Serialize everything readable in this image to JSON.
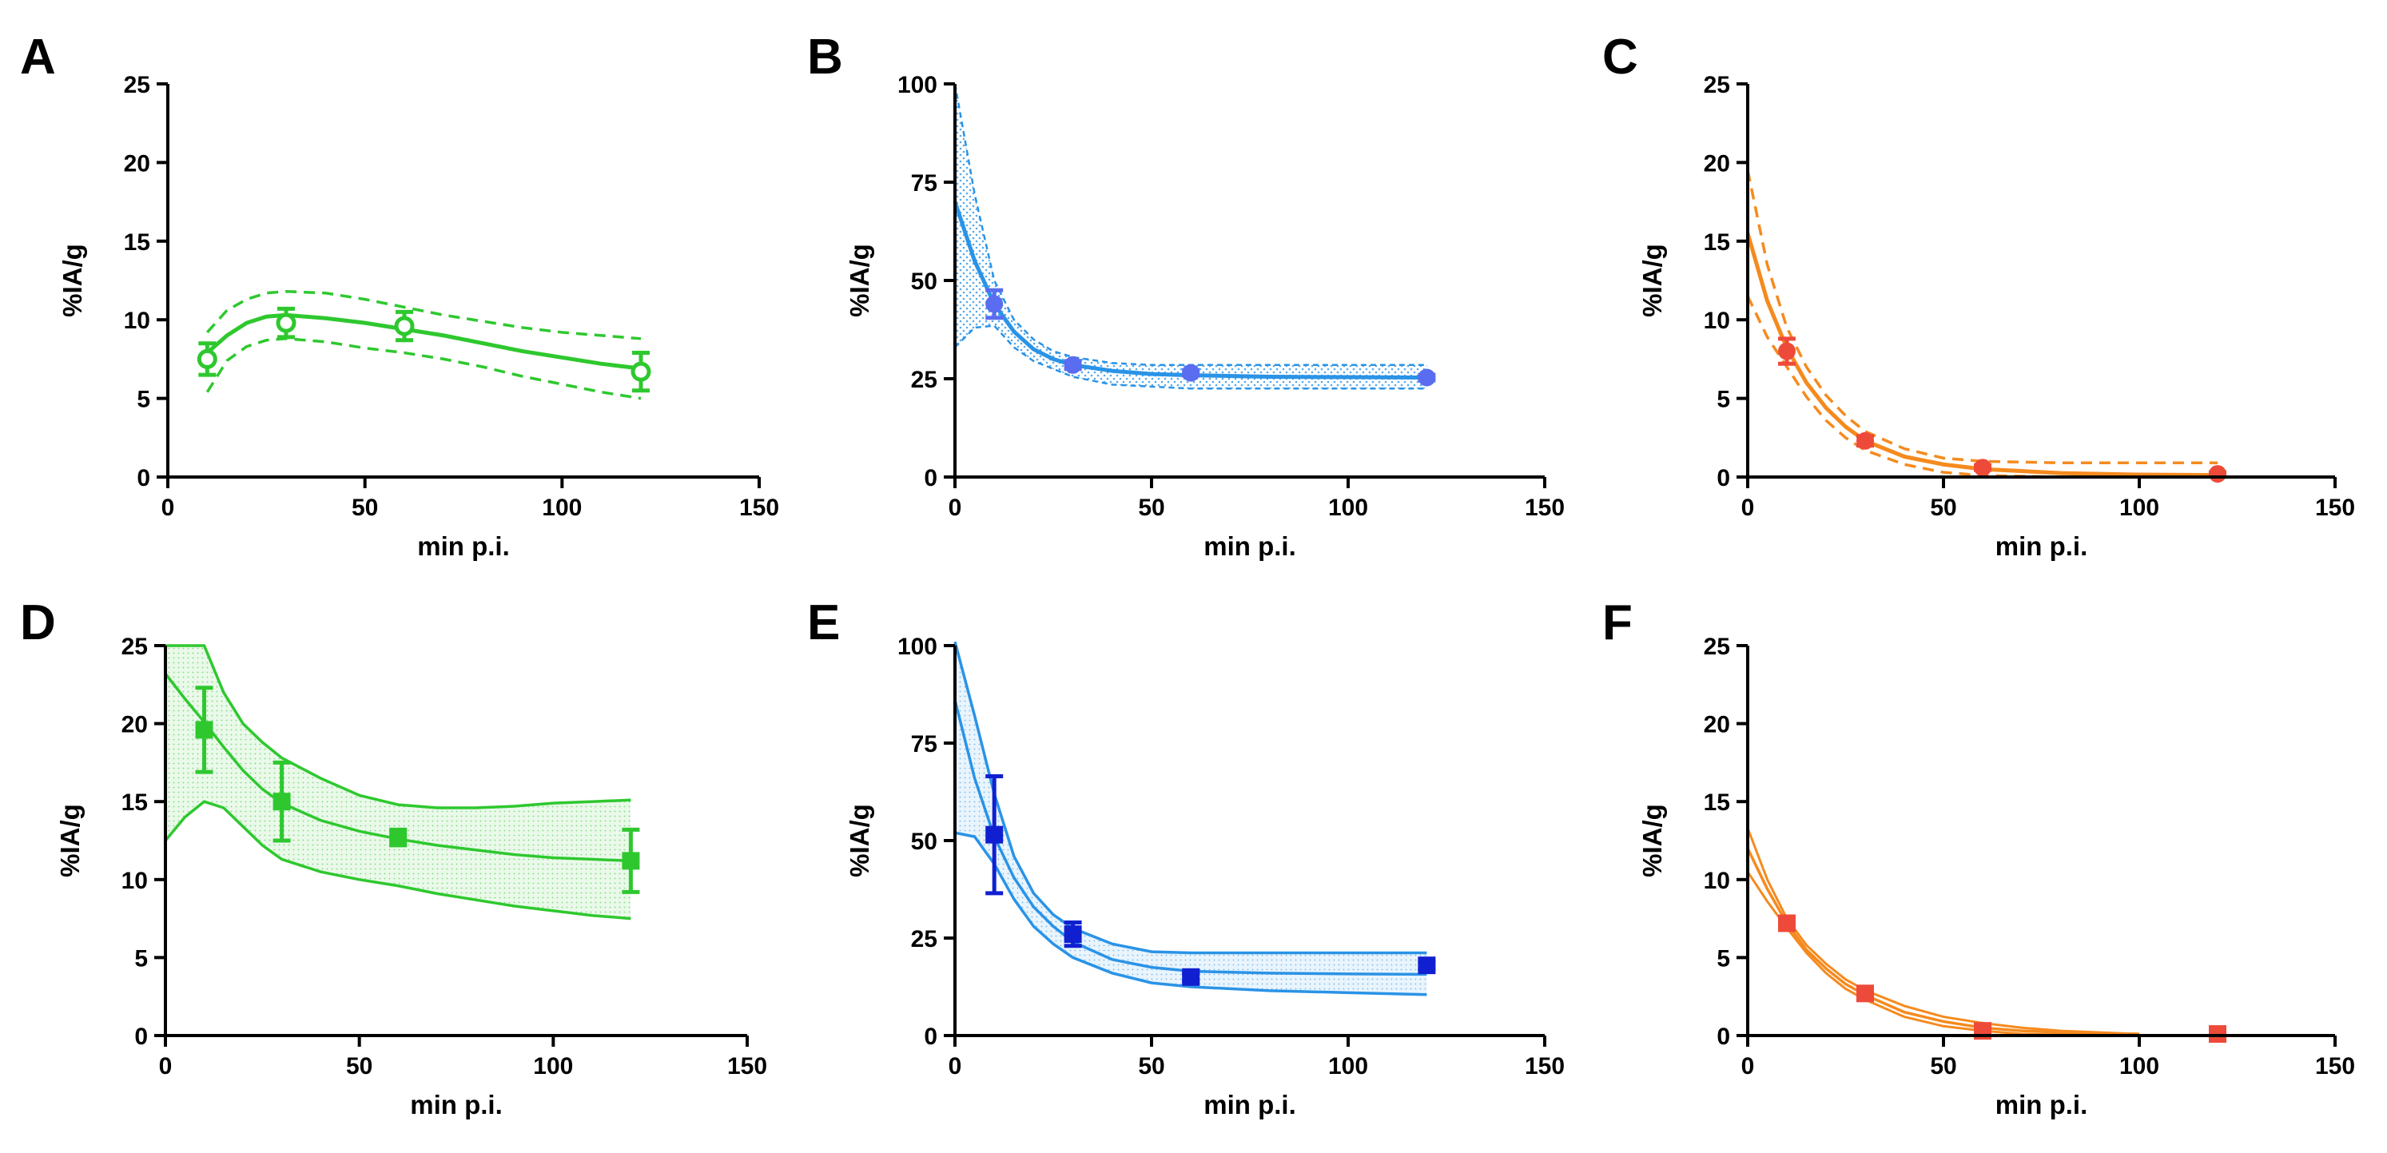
{
  "figure": {
    "description_labels": [
      "A",
      "B",
      "C",
      "D",
      "E",
      "F"
    ]
  },
  "colors": {
    "green": "#2ec82e",
    "blue": "#2a93e6",
    "blue_marker": "#5a6cf0",
    "blue_dark": "#1020d0",
    "orange": "#f58a1e",
    "red_marker": "#ee4a3a"
  },
  "chart_data": [
    {
      "panel": "A",
      "type": "scatter",
      "xlabel": "min p.i.",
      "ylabel": "%IA/g",
      "xlim": [
        0,
        150
      ],
      "ylim": [
        0,
        25
      ],
      "xticks": [
        "0",
        "50",
        "100",
        "150"
      ],
      "yticks": [
        "0",
        "5",
        "10",
        "15",
        "20",
        "25"
      ],
      "marker": "circle-open",
      "color_key": "green",
      "band_style": "dashed",
      "points": [
        {
          "x": 10,
          "y": 7.5,
          "err": 1.0
        },
        {
          "x": 30,
          "y": 9.8,
          "err": 0.9
        },
        {
          "x": 60,
          "y": 9.6,
          "err": 0.9
        },
        {
          "x": 120,
          "y": 6.7,
          "err": 1.2
        }
      ],
      "fit": {
        "x": [
          10,
          15,
          20,
          25,
          30,
          40,
          50,
          60,
          70,
          80,
          90,
          100,
          110,
          120
        ],
        "y": [
          7.9,
          9.0,
          9.8,
          10.2,
          10.3,
          10.1,
          9.8,
          9.4,
          9.0,
          8.5,
          8.0,
          7.6,
          7.2,
          6.9
        ]
      },
      "band_upper": {
        "x": [
          10,
          15,
          20,
          25,
          30,
          40,
          50,
          60,
          70,
          80,
          90,
          100,
          110,
          120
        ],
        "y": [
          9.2,
          10.6,
          11.3,
          11.7,
          11.8,
          11.7,
          11.3,
          10.8,
          10.3,
          9.9,
          9.5,
          9.2,
          9.0,
          8.8
        ]
      },
      "band_lower": {
        "x": [
          10,
          15,
          20,
          25,
          30,
          40,
          50,
          60,
          70,
          80,
          90,
          100,
          110,
          120
        ],
        "y": [
          5.4,
          7.4,
          8.3,
          8.7,
          8.8,
          8.6,
          8.2,
          7.9,
          7.5,
          7.0,
          6.4,
          5.9,
          5.4,
          5.0
        ]
      }
    },
    {
      "panel": "B",
      "type": "scatter",
      "xlabel": "min p.i.",
      "ylabel": "%IA/g",
      "xlim": [
        0,
        150
      ],
      "ylim": [
        0,
        100
      ],
      "xticks": [
        "0",
        "50",
        "100",
        "150"
      ],
      "yticks": [
        "0",
        "25",
        "50",
        "75",
        "100"
      ],
      "marker": "circle",
      "color_key": "blue",
      "marker_color_key": "blue_marker",
      "band_style": "dotted-fill",
      "points": [
        {
          "x": 10,
          "y": 44,
          "err": 3.5
        },
        {
          "x": 30,
          "y": 28.5,
          "err": 1.0
        },
        {
          "x": 60,
          "y": 26.5,
          "err": 0.7
        },
        {
          "x": 120,
          "y": 25.3,
          "err": 0.7
        }
      ],
      "fit": {
        "x": [
          0,
          5,
          10,
          15,
          20,
          25,
          30,
          40,
          50,
          60,
          80,
          100,
          120
        ],
        "y": [
          70,
          55,
          44,
          37,
          32.5,
          30,
          28.5,
          27,
          26.2,
          25.9,
          25.5,
          25.4,
          25.3
        ]
      },
      "band_upper": {
        "x": [
          0,
          5,
          10,
          15,
          20,
          25,
          30,
          40,
          50,
          60,
          80,
          100,
          120
        ],
        "y": [
          100,
          72,
          50,
          40,
          35,
          32,
          30.5,
          29,
          28.5,
          28.5,
          28.5,
          28.5,
          28.5
        ]
      },
      "band_lower": {
        "x": [
          0,
          5,
          10,
          15,
          20,
          25,
          30,
          40,
          50,
          60,
          80,
          100,
          120
        ],
        "y": [
          33,
          38,
          38.5,
          33,
          29.5,
          27.5,
          25.5,
          23.5,
          23,
          22.5,
          22.5,
          22.5,
          22.5
        ]
      }
    },
    {
      "panel": "C",
      "type": "scatter",
      "xlabel": "min p.i.",
      "ylabel": "%IA/g",
      "xlim": [
        0,
        150
      ],
      "ylim": [
        0,
        25
      ],
      "xticks": [
        "0",
        "50",
        "100",
        "150"
      ],
      "yticks": [
        "0",
        "5",
        "10",
        "15",
        "20",
        "25"
      ],
      "marker": "circle",
      "color_key": "orange",
      "marker_color_key": "red_marker",
      "band_style": "dashed",
      "points": [
        {
          "x": 10,
          "y": 8.0,
          "err": 0.8
        },
        {
          "x": 30,
          "y": 2.3,
          "err": 0.3
        },
        {
          "x": 60,
          "y": 0.6,
          "err": 0.15
        },
        {
          "x": 120,
          "y": 0.2,
          "err": 0.1
        }
      ],
      "fit": {
        "x": [
          0,
          5,
          10,
          15,
          20,
          25,
          30,
          40,
          50,
          60,
          80,
          100,
          120
        ],
        "y": [
          15.5,
          11.2,
          8.2,
          6.0,
          4.4,
          3.2,
          2.3,
          1.3,
          0.8,
          0.5,
          0.25,
          0.15,
          0.12
        ]
      },
      "band_upper": {
        "x": [
          0,
          5,
          10,
          15,
          20,
          25,
          30,
          40,
          50,
          60,
          80,
          100,
          120
        ],
        "y": [
          19.5,
          13.5,
          9.5,
          7.0,
          5.2,
          3.9,
          2.9,
          1.8,
          1.2,
          1.0,
          0.9,
          0.9,
          0.9
        ]
      },
      "band_lower": {
        "x": [
          0,
          5,
          10,
          15,
          20,
          25,
          30,
          40,
          50,
          60,
          80,
          100,
          120
        ],
        "y": [
          11.5,
          8.9,
          7.0,
          5.1,
          3.6,
          2.5,
          1.7,
          0.8,
          0.3,
          0.1,
          0.0,
          0.0,
          0.0
        ]
      }
    },
    {
      "panel": "D",
      "type": "scatter",
      "xlabel": "min p.i.",
      "ylabel": "%IA/g",
      "xlim": [
        0,
        150
      ],
      "ylim": [
        0,
        25
      ],
      "xticks": [
        "0",
        "50",
        "100",
        "150"
      ],
      "yticks": [
        "0",
        "5",
        "10",
        "15",
        "20",
        "25"
      ],
      "marker": "square",
      "color_key": "green",
      "band_style": "solid-fill",
      "points": [
        {
          "x": 10,
          "y": 19.6,
          "err": 2.7
        },
        {
          "x": 30,
          "y": 15.0,
          "err": 2.5
        },
        {
          "x": 60,
          "y": 12.7,
          "err": 0.5
        },
        {
          "x": 120,
          "y": 11.2,
          "err": 2.0
        }
      ],
      "fit": {
        "x": [
          0,
          5,
          10,
          15,
          20,
          25,
          30,
          40,
          50,
          60,
          70,
          80,
          90,
          100,
          110,
          120
        ],
        "y": [
          23.2,
          21.6,
          20.1,
          18.5,
          17.0,
          15.8,
          14.9,
          13.8,
          13.1,
          12.6,
          12.2,
          11.9,
          11.6,
          11.4,
          11.3,
          11.2
        ]
      },
      "band_upper": {
        "x": [
          0,
          5,
          10,
          15,
          20,
          25,
          30,
          40,
          50,
          60,
          70,
          80,
          90,
          100,
          110,
          120
        ],
        "y": [
          25,
          25,
          25,
          22.0,
          20.0,
          18.8,
          17.8,
          16.5,
          15.4,
          14.8,
          14.6,
          14.6,
          14.7,
          14.9,
          15.0,
          15.1
        ]
      },
      "band_lower": {
        "x": [
          0,
          5,
          10,
          15,
          20,
          25,
          30,
          40,
          50,
          60,
          70,
          80,
          90,
          100,
          110,
          120
        ],
        "y": [
          12.5,
          14.0,
          15.0,
          14.6,
          13.4,
          12.2,
          11.3,
          10.5,
          10.0,
          9.6,
          9.1,
          8.7,
          8.3,
          8.0,
          7.7,
          7.5
        ]
      }
    },
    {
      "panel": "E",
      "type": "scatter",
      "xlabel": "min p.i.",
      "ylabel": "%IA/g",
      "xlim": [
        0,
        150
      ],
      "ylim": [
        0,
        100
      ],
      "xticks": [
        "0",
        "50",
        "100",
        "150"
      ],
      "yticks": [
        "0",
        "25",
        "50",
        "75",
        "100"
      ],
      "marker": "square",
      "color_key": "blue",
      "marker_color_key": "blue_dark",
      "band_style": "solid-fill",
      "points": [
        {
          "x": 10,
          "y": 51.5,
          "err": 15.0
        },
        {
          "x": 30,
          "y": 26.0,
          "err": 3.0
        },
        {
          "x": 60,
          "y": 15.0,
          "err": 1.0
        },
        {
          "x": 120,
          "y": 18.0,
          "err": 1.0
        }
      ],
      "fit": {
        "x": [
          0,
          5,
          10,
          15,
          20,
          25,
          30,
          40,
          50,
          60,
          80,
          100,
          120
        ],
        "y": [
          86,
          66,
          51,
          40.5,
          33,
          28,
          24,
          19.5,
          17.5,
          16.5,
          16,
          15.8,
          15.7
        ]
      },
      "band_upper": {
        "x": [
          0,
          5,
          10,
          15,
          20,
          25,
          30,
          40,
          50,
          60,
          80,
          100,
          120
        ],
        "y": [
          101,
          82,
          62,
          46,
          36.5,
          31,
          27.5,
          23.5,
          21.5,
          21.2,
          21.2,
          21.2,
          21.2
        ]
      },
      "band_lower": {
        "x": [
          0,
          5,
          10,
          15,
          20,
          25,
          30,
          40,
          50,
          60,
          80,
          100,
          120
        ],
        "y": [
          52,
          51,
          44,
          35,
          28,
          23.5,
          20,
          16,
          13.5,
          12.5,
          11.5,
          11,
          10.5
        ]
      }
    },
    {
      "panel": "F",
      "type": "scatter",
      "xlabel": "min p.i.",
      "ylabel": "%IA/g",
      "xlim": [
        0,
        150
      ],
      "ylim": [
        0,
        25
      ],
      "xticks": [
        "0",
        "50",
        "100",
        "150"
      ],
      "yticks": [
        "0",
        "5",
        "10",
        "15",
        "20",
        "25"
      ],
      "marker": "square",
      "color_key": "orange",
      "marker_color_key": "red_marker",
      "band_style": "solid",
      "points": [
        {
          "x": 10,
          "y": 7.2,
          "err": 0.3
        },
        {
          "x": 30,
          "y": 2.7,
          "err": 0.3
        },
        {
          "x": 60,
          "y": 0.3,
          "err": 0.1
        },
        {
          "x": 120,
          "y": 0.1,
          "err": 0.1
        }
      ],
      "fit": {
        "x": [
          0,
          5,
          10,
          15,
          20,
          25,
          30,
          40,
          50,
          60,
          70,
          80,
          90,
          100
        ],
        "y": [
          12.0,
          9.4,
          7.2,
          5.5,
          4.3,
          3.3,
          2.6,
          1.5,
          0.9,
          0.5,
          0.3,
          0.2,
          0.1,
          0.1
        ]
      },
      "band_upper": {
        "x": [
          0,
          5,
          10,
          15,
          20,
          25,
          30,
          40,
          50,
          60,
          70,
          80,
          90,
          100
        ],
        "y": [
          13.3,
          10.0,
          7.5,
          5.8,
          4.6,
          3.6,
          2.9,
          1.9,
          1.2,
          0.8,
          0.5,
          0.3,
          0.2,
          0.1
        ]
      },
      "band_lower": {
        "x": [
          0,
          5,
          10,
          15,
          20,
          25,
          30,
          40,
          50,
          60,
          70,
          80,
          90,
          100
        ],
        "y": [
          10.5,
          8.6,
          6.9,
          5.3,
          4.0,
          3.0,
          2.3,
          1.2,
          0.6,
          0.3,
          0.1,
          0.05,
          0.0,
          0.0
        ]
      }
    }
  ]
}
